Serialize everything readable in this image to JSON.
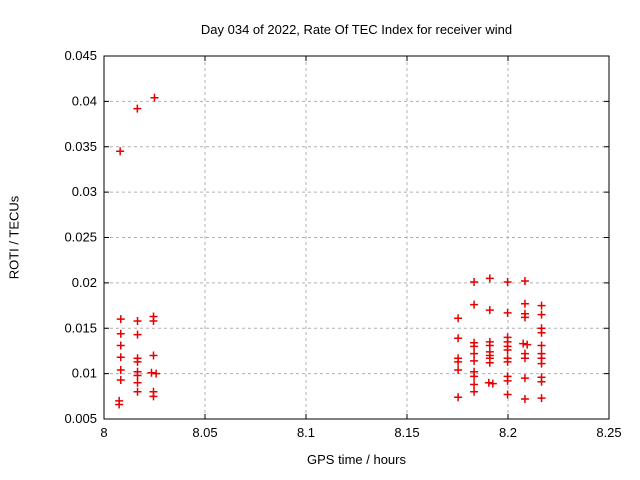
{
  "title": "Day 034 of 2022, Rate Of TEC Index for receiver wind",
  "colors": {
    "marker": "#e60000",
    "grid": "#b0b0b0",
    "axis": "#000000",
    "background": "#ffffff",
    "text": "#000000"
  },
  "chart_data": {
    "type": "scatter",
    "title": "Day 034 of 2022, Rate Of TEC Index for receiver wind",
    "xlabel": "GPS time / hours",
    "ylabel": "ROTI / TECUs",
    "xlim": [
      8.0,
      8.25
    ],
    "ylim": [
      0.005,
      0.045
    ],
    "grid": true,
    "grid_style": "dashed",
    "legend_position": "none",
    "marker": {
      "shape": "plus",
      "color": "#e60000",
      "size": 9
    },
    "xticks": {
      "values": [
        8.0,
        8.05,
        8.1,
        8.15,
        8.2,
        8.25
      ],
      "labels": [
        "8",
        "8.05",
        "8.1",
        "8.15",
        "8.2",
        "8.25"
      ]
    },
    "yticks": {
      "values": [
        0.005,
        0.01,
        0.015,
        0.02,
        0.025,
        0.03,
        0.035,
        0.04,
        0.045
      ],
      "labels": [
        "0.005",
        "0.01",
        "0.015",
        "0.02",
        "0.025",
        "0.03",
        "0.035",
        "0.04",
        "0.045"
      ]
    },
    "series": [
      {
        "name": "ROTI",
        "points": [
          [
            8.008,
            0.0345
          ],
          [
            8.0165,
            0.0392
          ],
          [
            8.025,
            0.0404
          ],
          [
            8.0083,
            0.016
          ],
          [
            8.0083,
            0.0144
          ],
          [
            8.0083,
            0.0131
          ],
          [
            8.0083,
            0.0118
          ],
          [
            8.0083,
            0.0104
          ],
          [
            8.0083,
            0.0093
          ],
          [
            8.0075,
            0.007
          ],
          [
            8.0075,
            0.0066
          ],
          [
            8.0166,
            0.0158
          ],
          [
            8.0166,
            0.0143
          ],
          [
            8.0166,
            0.0117
          ],
          [
            8.0166,
            0.0113
          ],
          [
            8.0166,
            0.0102
          ],
          [
            8.0166,
            0.0098
          ],
          [
            8.0166,
            0.009
          ],
          [
            8.0166,
            0.008
          ],
          [
            8.0245,
            0.0163
          ],
          [
            8.0245,
            0.0158
          ],
          [
            8.0245,
            0.012
          ],
          [
            8.0235,
            0.0101
          ],
          [
            8.0258,
            0.01
          ],
          [
            8.0245,
            0.008
          ],
          [
            8.0245,
            0.0075
          ],
          [
            8.1753,
            0.0161
          ],
          [
            8.1753,
            0.0139
          ],
          [
            8.1753,
            0.0117
          ],
          [
            8.1753,
            0.0113
          ],
          [
            8.1753,
            0.0104
          ],
          [
            8.1753,
            0.0074
          ],
          [
            8.1832,
            0.0201
          ],
          [
            8.1832,
            0.0176
          ],
          [
            8.1832,
            0.0134
          ],
          [
            8.1832,
            0.013
          ],
          [
            8.1832,
            0.0122
          ],
          [
            8.1832,
            0.0114
          ],
          [
            8.1832,
            0.0102
          ],
          [
            8.1832,
            0.0097
          ],
          [
            8.1832,
            0.0088
          ],
          [
            8.1832,
            0.008
          ],
          [
            8.191,
            0.0205
          ],
          [
            8.191,
            0.017
          ],
          [
            8.191,
            0.0135
          ],
          [
            8.191,
            0.0131
          ],
          [
            8.191,
            0.0124
          ],
          [
            8.191,
            0.012
          ],
          [
            8.191,
            0.0117
          ],
          [
            8.191,
            0.0112
          ],
          [
            8.1905,
            0.009
          ],
          [
            8.1925,
            0.0089
          ],
          [
            8.1998,
            0.0201
          ],
          [
            8.1998,
            0.0167
          ],
          [
            8.1998,
            0.014
          ],
          [
            8.1998,
            0.0135
          ],
          [
            8.1998,
            0.013
          ],
          [
            8.1998,
            0.0126
          ],
          [
            8.1998,
            0.0117
          ],
          [
            8.1998,
            0.0113
          ],
          [
            8.1998,
            0.0097
          ],
          [
            8.1998,
            0.0092
          ],
          [
            8.1998,
            0.0077
          ],
          [
            8.2084,
            0.0202
          ],
          [
            8.2084,
            0.0177
          ],
          [
            8.2084,
            0.0166
          ],
          [
            8.2084,
            0.0162
          ],
          [
            8.2075,
            0.0133
          ],
          [
            8.2095,
            0.0132
          ],
          [
            8.2084,
            0.0122
          ],
          [
            8.2084,
            0.0117
          ],
          [
            8.2084,
            0.0095
          ],
          [
            8.2084,
            0.0072
          ],
          [
            8.2166,
            0.0175
          ],
          [
            8.2166,
            0.0165
          ],
          [
            8.2166,
            0.015
          ],
          [
            8.2166,
            0.0145
          ],
          [
            8.2166,
            0.0131
          ],
          [
            8.2166,
            0.0122
          ],
          [
            8.2166,
            0.0117
          ],
          [
            8.2166,
            0.0111
          ],
          [
            8.2166,
            0.0096
          ],
          [
            8.2166,
            0.0091
          ],
          [
            8.2166,
            0.0073
          ]
        ]
      }
    ]
  }
}
